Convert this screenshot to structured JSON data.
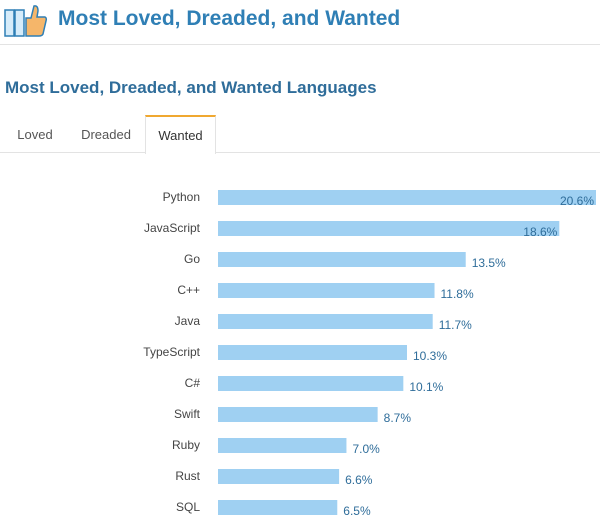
{
  "header": {
    "title": "Most Loved, Dreaded, and Wanted",
    "logo_icon": "thumbs-up-icon"
  },
  "section": {
    "title": "Most Loved, Dreaded, and Wanted Languages"
  },
  "tabs": [
    {
      "label": "Loved",
      "active": false
    },
    {
      "label": "Dreaded",
      "active": false
    },
    {
      "label": "Wanted",
      "active": true
    }
  ],
  "colors": {
    "bar": "#9fd0f2",
    "title": "#2f7fb5",
    "active_tab_accent": "#f0a830"
  },
  "chart_data": {
    "type": "bar",
    "orientation": "horizontal",
    "categories": [
      "Python",
      "JavaScript",
      "Go",
      "C++",
      "Java",
      "TypeScript",
      "C#",
      "Swift",
      "Ruby",
      "Rust",
      "SQL"
    ],
    "values": [
      20.6,
      18.6,
      13.5,
      11.8,
      11.7,
      10.3,
      10.1,
      8.7,
      7.0,
      6.6,
      6.5
    ],
    "value_labels": [
      "20.6%",
      "18.6%",
      "13.5%",
      "11.8%",
      "11.7%",
      "10.3%",
      "10.1%",
      "8.7%",
      "7.0%",
      "6.6%",
      "6.5%"
    ],
    "xlim": [
      0,
      20.6
    ],
    "unit": "%"
  }
}
